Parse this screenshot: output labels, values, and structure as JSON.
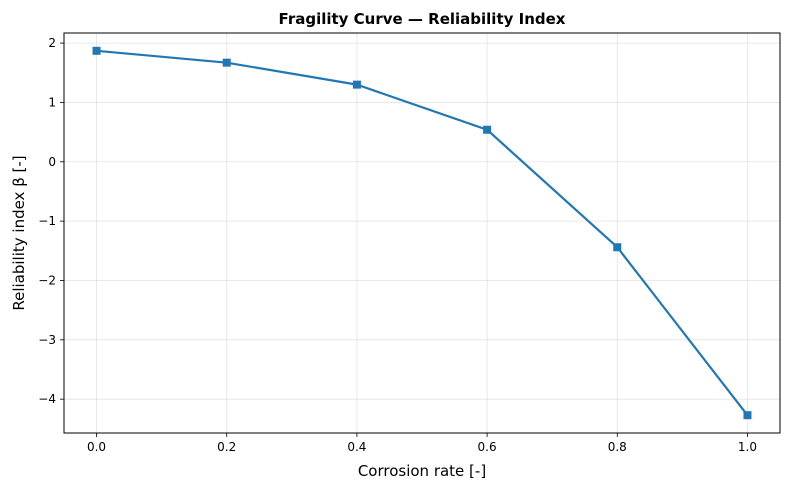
{
  "chart_data": {
    "type": "line",
    "title": "Fragility Curve — Reliability Index",
    "xlabel": "Corrosion rate [-]",
    "ylabel": "Reliability index β [-]",
    "x": [
      0.0,
      0.2,
      0.4,
      0.6,
      0.8,
      1.0
    ],
    "series": [
      {
        "values": [
          1.87,
          1.67,
          1.3,
          0.54,
          -1.44,
          -4.27
        ],
        "color": "#1f77b4",
        "marker": "square"
      }
    ],
    "xlim": [
      -0.05,
      1.05
    ],
    "ylim": [
      -4.57,
      2.17
    ],
    "xticks": [
      0.0,
      0.2,
      0.4,
      0.6,
      0.8,
      1.0
    ],
    "xtick_labels": [
      "0.0",
      "0.2",
      "0.4",
      "0.6",
      "0.8",
      "1.0"
    ],
    "yticks": [
      -4,
      -3,
      -2,
      -1,
      0,
      1,
      2
    ],
    "ytick_labels": [
      "−4",
      "−3",
      "−2",
      "−1",
      "0",
      "1",
      "2"
    ],
    "grid": true,
    "legend": "none"
  }
}
